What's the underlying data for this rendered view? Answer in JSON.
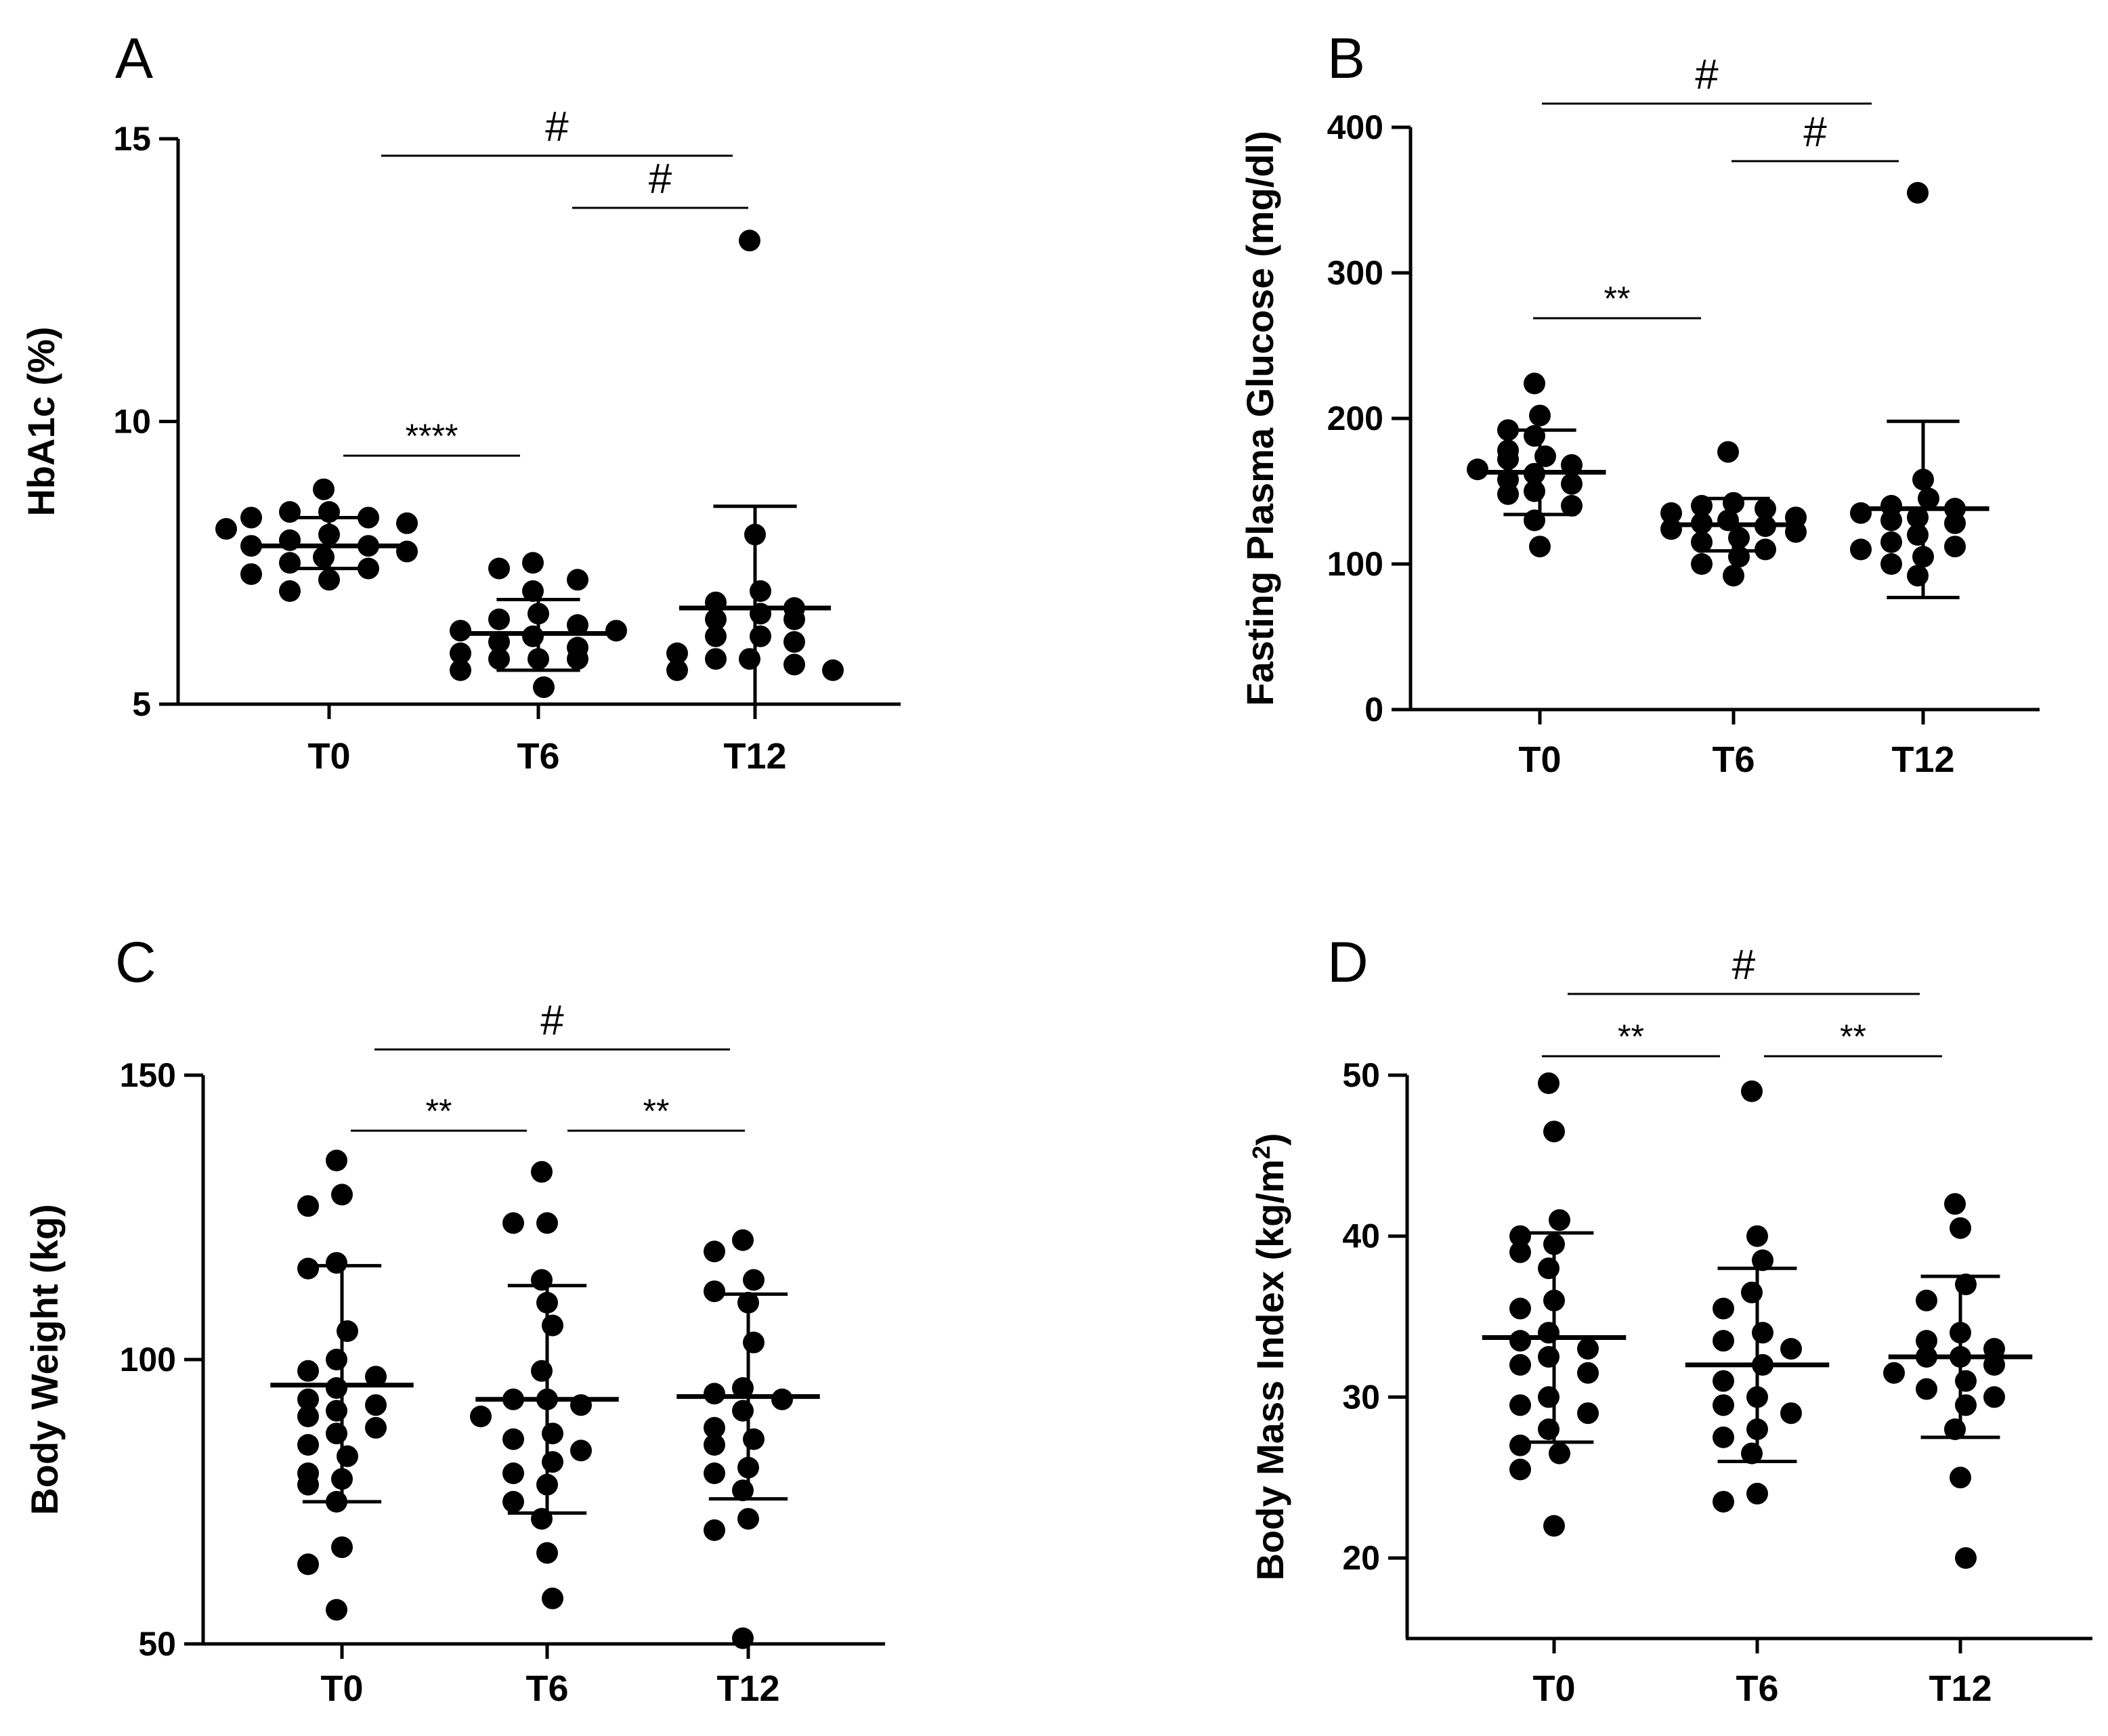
{
  "chart_data": [
    {
      "type": "scatter",
      "panel": "A",
      "ylabel": "HbA1c (%)",
      "ylabel_sup": "",
      "ylabel_tail": "",
      "ylim": [
        5,
        15
      ],
      "yticks": [
        5,
        10,
        15
      ],
      "categories": [
        "T0",
        "T6",
        "T12"
      ],
      "series": [
        {
          "name": "T0",
          "values": [
            8.8,
            8.4,
            8.4,
            8.3,
            8.3,
            8.2,
            8.1,
            8.0,
            7.9,
            7.8,
            7.8,
            7.7,
            7.6,
            7.5,
            7.4,
            7.3,
            7.2,
            7.0
          ],
          "mean": 7.8,
          "sd_low": 7.4,
          "sd_high": 8.3
        },
        {
          "name": "T6",
          "values": [
            7.5,
            7.4,
            7.2,
            7.0,
            6.6,
            6.5,
            6.4,
            6.3,
            6.3,
            6.2,
            6.1,
            6.0,
            5.9,
            5.8,
            5.8,
            5.8,
            5.6,
            5.3
          ],
          "mean": 6.25,
          "sd_low": 5.6,
          "sd_high": 6.85
        },
        {
          "name": "T12",
          "values": [
            13.2,
            8.0,
            7.0,
            6.8,
            6.7,
            6.6,
            6.5,
            6.5,
            6.2,
            6.2,
            6.1,
            5.9,
            5.8,
            5.8,
            5.7,
            5.6,
            5.6
          ],
          "mean": 6.7,
          "sd_low": 4.8,
          "sd_high": 8.5
        }
      ],
      "comparisons": [
        {
          "from": "T0",
          "to": "T6",
          "label": "****"
        },
        {
          "from": "T0",
          "to": "T12",
          "label": "#"
        },
        {
          "from": "T6",
          "to": "T12",
          "label": "#"
        }
      ]
    },
    {
      "type": "scatter",
      "panel": "B",
      "ylabel": "Fasting Plasma Glucose (mg/dl)",
      "ylabel_sup": "",
      "ylabel_tail": "",
      "ylim": [
        0,
        400
      ],
      "yticks": [
        0,
        100,
        200,
        300,
        400
      ],
      "categories": [
        "T0",
        "T6",
        "T12"
      ],
      "series": [
        {
          "name": "T0",
          "values": [
            224,
            202,
            192,
            188,
            178,
            174,
            172,
            168,
            165,
            162,
            158,
            155,
            150,
            148,
            140,
            130,
            112
          ],
          "mean": 163,
          "sd_low": 134,
          "sd_high": 192
        },
        {
          "name": "T6",
          "values": [
            177,
            142,
            140,
            138,
            135,
            132,
            130,
            128,
            126,
            124,
            122,
            118,
            115,
            110,
            105,
            100,
            92
          ],
          "mean": 127,
          "sd_low": 109,
          "sd_high": 145
        },
        {
          "name": "T12",
          "values": [
            355,
            158,
            145,
            140,
            138,
            135,
            132,
            130,
            128,
            120,
            115,
            112,
            110,
            105,
            100,
            92
          ],
          "mean": 138,
          "sd_low": 77,
          "sd_high": 198
        }
      ],
      "comparisons": [
        {
          "from": "T0",
          "to": "T6",
          "label": "**"
        },
        {
          "from": "T0",
          "to": "T12",
          "label": "#"
        },
        {
          "from": "T6",
          "to": "T12",
          "label": "#"
        }
      ]
    },
    {
      "type": "scatter",
      "panel": "C",
      "ylabel": "Body Weight (kg)",
      "ylabel_sup": "",
      "ylabel_tail": "",
      "ylim": [
        50,
        150
      ],
      "yticks": [
        50,
        100,
        150
      ],
      "categories": [
        "T0",
        "T6",
        "T12"
      ],
      "series": [
        {
          "name": "T0",
          "values": [
            135,
            129,
            127,
            117,
            116,
            105,
            100,
            98,
            97,
            95,
            93,
            92,
            91,
            90,
            88,
            87,
            85,
            83,
            80,
            79,
            78,
            75,
            67,
            64,
            56
          ],
          "mean": 95.5,
          "sd_low": 75,
          "sd_high": 116.5
        },
        {
          "name": "T6",
          "values": [
            133,
            124,
            124,
            114,
            110,
            106,
            98,
            93,
            93,
            92,
            90,
            87,
            86,
            84,
            82,
            80,
            78,
            75,
            72,
            66,
            58
          ],
          "mean": 93,
          "sd_low": 73,
          "sd_high": 113
        },
        {
          "name": "T12",
          "values": [
            121,
            119,
            114,
            112,
            110,
            103,
            95,
            94,
            93,
            91,
            88,
            86,
            85,
            81,
            80,
            77,
            72,
            70,
            51
          ],
          "mean": 93.5,
          "sd_low": 75.5,
          "sd_high": 111.5
        }
      ],
      "comparisons": [
        {
          "from": "T0",
          "to": "T6",
          "label": "**"
        },
        {
          "from": "T0",
          "to": "T12",
          "label": "#"
        },
        {
          "from": "T6",
          "to": "T12",
          "label": "**"
        }
      ]
    },
    {
      "type": "scatter",
      "panel": "D",
      "ylabel": "Body Mass Index (kg/m",
      "ylabel_sup": "2",
      "ylabel_tail": ")",
      "ylim": [
        15,
        50
      ],
      "yticks": [
        20,
        30,
        40,
        50
      ],
      "categories": [
        "T0",
        "T6",
        "T12"
      ],
      "series": [
        {
          "name": "T0",
          "values": [
            49.5,
            46.5,
            41,
            40,
            39.5,
            39,
            38,
            36,
            35.5,
            34,
            33.5,
            33,
            32.5,
            32,
            31.5,
            30,
            29.5,
            29,
            28,
            27,
            26.5,
            25.5,
            22
          ],
          "mean": 33.7,
          "sd_low": 27.2,
          "sd_high": 40.2
        },
        {
          "name": "T6",
          "values": [
            49,
            40,
            38.5,
            36.5,
            35.5,
            34,
            33.5,
            33,
            32,
            31,
            30,
            29.5,
            29,
            28,
            27.5,
            26.5,
            24,
            23.5
          ],
          "mean": 32,
          "sd_low": 26,
          "sd_high": 38
        },
        {
          "name": "T12",
          "values": [
            42,
            40.5,
            37,
            36,
            34,
            33.5,
            33,
            32.5,
            32.5,
            32,
            31.5,
            31,
            30.5,
            30,
            29.5,
            28,
            25,
            20
          ],
          "mean": 32.5,
          "sd_low": 27.5,
          "sd_high": 37.5
        }
      ],
      "comparisons": [
        {
          "from": "T0",
          "to": "T6",
          "label": "**"
        },
        {
          "from": "T0",
          "to": "T12",
          "label": "#"
        },
        {
          "from": "T6",
          "to": "T12",
          "label": "**"
        }
      ]
    }
  ]
}
